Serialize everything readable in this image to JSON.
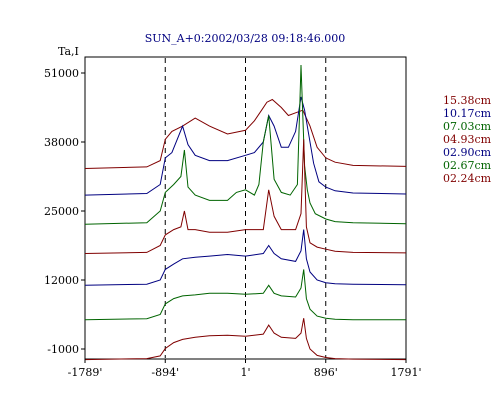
{
  "chart_data": {
    "type": "line",
    "title": "SUN_A+0:2002/03/28 09:18:46.000",
    "ylabel": "Ta,I",
    "xlim": [
      -1789,
      1791
    ],
    "ylim": [
      -1000,
      56000
    ],
    "x_ticks": [
      {
        "value": -1789,
        "label": "-1789'"
      },
      {
        "value": -894,
        "label": "-894'"
      },
      {
        "value": 1,
        "label": "1'"
      },
      {
        "value": 896,
        "label": "896'"
      },
      {
        "value": 1791,
        "label": "1791'"
      }
    ],
    "y_ticks": [
      {
        "value": 51000,
        "label": "51000"
      },
      {
        "value": 38000,
        "label": "38000"
      },
      {
        "value": 25000,
        "label": "25000"
      },
      {
        "value": 12000,
        "label": "12000"
      },
      {
        "value": -1000,
        "label": "-1000"
      }
    ],
    "vlines": [
      -894,
      1,
      896
    ],
    "series": [
      {
        "name": "15.38cm",
        "color": "#800000",
        "x": [
          -1789,
          -1100,
          -950,
          -894,
          -820,
          -700,
          -560,
          -400,
          -200,
          1,
          100,
          180,
          240,
          300,
          400,
          480,
          560,
          640,
          720,
          800,
          896,
          1000,
          1200,
          1791
        ],
        "y": [
          33000,
          33300,
          34500,
          38500,
          40000,
          41000,
          42500,
          41000,
          39500,
          40200,
          42000,
          44000,
          45500,
          46000,
          44500,
          43000,
          43500,
          44000,
          41000,
          37000,
          35000,
          34200,
          33600,
          33400
        ]
      },
      {
        "name": "10.17cm",
        "color": "#000080",
        "x": [
          -1789,
          -1100,
          -950,
          -894,
          -820,
          -700,
          -640,
          -560,
          -400,
          -200,
          1,
          100,
          200,
          260,
          320,
          400,
          480,
          560,
          620,
          660,
          700,
          760,
          820,
          896,
          1000,
          1200,
          1791
        ],
        "y": [
          28000,
          28300,
          30000,
          35000,
          36000,
          41000,
          37500,
          35500,
          34500,
          34500,
          35500,
          36000,
          38000,
          43000,
          41000,
          37000,
          37000,
          40000,
          46500,
          44000,
          40000,
          34000,
          30500,
          29500,
          28800,
          28400,
          28200
        ]
      },
      {
        "name": "07.03cm",
        "color": "#006400",
        "x": [
          -1789,
          -1100,
          -950,
          -894,
          -800,
          -720,
          -680,
          -640,
          -560,
          -400,
          -200,
          -100,
          1,
          100,
          150,
          200,
          260,
          320,
          400,
          500,
          580,
          620,
          660,
          690,
          720,
          780,
          896,
          1000,
          1200,
          1791
        ],
        "y": [
          22500,
          22800,
          25000,
          28500,
          30000,
          31500,
          36500,
          29500,
          28000,
          27000,
          27000,
          28500,
          29000,
          28000,
          30000,
          38000,
          43000,
          31000,
          28500,
          28000,
          30000,
          52500,
          33500,
          29000,
          26500,
          24500,
          23500,
          23000,
          22800,
          22600
        ]
      },
      {
        "name": "04.93cm",
        "color": "#800000",
        "x": [
          -1789,
          -1100,
          -950,
          -894,
          -800,
          -720,
          -680,
          -640,
          -560,
          -400,
          -200,
          1,
          200,
          260,
          320,
          400,
          560,
          620,
          650,
          680,
          720,
          800,
          896,
          1000,
          1200,
          1791
        ],
        "y": [
          17000,
          17200,
          18500,
          20500,
          21500,
          22000,
          25000,
          21500,
          21500,
          21000,
          21000,
          21500,
          21500,
          29000,
          24000,
          21500,
          21500,
          24500,
          38500,
          22000,
          19000,
          18200,
          17800,
          17400,
          17200,
          17100
        ]
      },
      {
        "name": "02.90cm",
        "color": "#000080",
        "x": [
          -1789,
          -1100,
          -950,
          -894,
          -800,
          -700,
          -560,
          -400,
          -200,
          1,
          200,
          260,
          320,
          400,
          560,
          620,
          650,
          680,
          720,
          800,
          896,
          1000,
          1200,
          1791
        ],
        "y": [
          11000,
          11200,
          12000,
          14000,
          15000,
          16000,
          16300,
          16500,
          16800,
          16500,
          17000,
          18500,
          17000,
          16000,
          15500,
          17500,
          21500,
          16000,
          13500,
          12000,
          11500,
          11300,
          11200,
          11100
        ]
      },
      {
        "name": "02.67cm",
        "color": "#006400",
        "x": [
          -1789,
          -1100,
          -950,
          -894,
          -800,
          -700,
          -560,
          -400,
          -200,
          1,
          200,
          260,
          320,
          400,
          560,
          620,
          650,
          680,
          720,
          800,
          896,
          1000,
          1200,
          1791
        ],
        "y": [
          4500,
          4700,
          5500,
          7500,
          8500,
          9000,
          9200,
          9500,
          9500,
          9300,
          9500,
          11000,
          9500,
          9000,
          8800,
          10500,
          14000,
          8500,
          6500,
          5200,
          4800,
          4600,
          4500,
          4500
        ]
      },
      {
        "name": "02.24cm",
        "color": "#800000",
        "x": [
          -1789,
          -1100,
          -950,
          -894,
          -800,
          -700,
          -560,
          -400,
          -200,
          1,
          200,
          260,
          320,
          400,
          560,
          620,
          650,
          680,
          720,
          800,
          896,
          1000,
          1200,
          1791
        ],
        "y": [
          -3000,
          -2800,
          -2300,
          -900,
          200,
          800,
          1200,
          1500,
          1600,
          1400,
          1800,
          3500,
          2000,
          1200,
          1000,
          2000,
          4800,
          1000,
          -1000,
          -2200,
          -2600,
          -2800,
          -2900,
          -3000
        ]
      }
    ],
    "legend_position": "right"
  }
}
